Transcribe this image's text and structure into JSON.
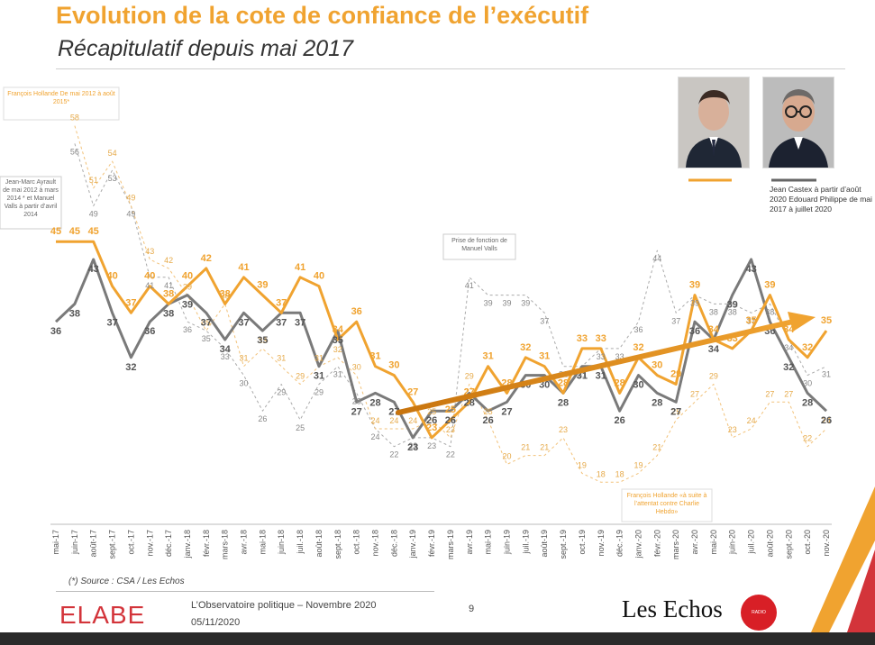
{
  "header": {
    "title": "Evolution de la cote de confiance de l’exécutif",
    "subtitle": "Récapitulatif depuis mai 2017"
  },
  "colors": {
    "orange": "#f0a330",
    "grey": "#7a7a7a",
    "title": "#f0a330",
    "elabe": "#d3343a"
  },
  "images": {
    "photo1": "portrait-man-dark-hair",
    "photo2": "portrait-man-glasses"
  },
  "legend": {
    "castex_label": "Jean  Castex à partir d’août 2020 Edouard Philippe de mai 2017 à juillet 2020"
  },
  "chart_data": {
    "type": "line",
    "categories": [
      "mai-17",
      "juin-17",
      "août-17",
      "sept.-17",
      "oct.-17",
      "nov.-17",
      "déc.-17",
      "janv.-18",
      "févr.-18",
      "mars-18",
      "avr.-18",
      "mai-18",
      "juin-18",
      "juil.-18",
      "août-18",
      "sept.-18",
      "oct.-18",
      "nov.-18",
      "déc.-18",
      "janv.-19",
      "févr.-19",
      "mars-19",
      "avr.-19",
      "mai-19",
      "juin-19",
      "juil.-19",
      "août-19",
      "sept.-19",
      "oct.-19",
      "nov.-19",
      "déc.-19",
      "janv.-20",
      "févr.-20",
      "mars-20",
      "avr.-20",
      "mai-20",
      "juin-20",
      "juil.-20",
      "août-20",
      "sept.-20",
      "oct.-20",
      "nov.-20"
    ],
    "ylim": [
      15,
      62
    ],
    "series": [
      {
        "values": [
          45,
          45,
          45,
          40,
          37,
          40,
          38,
          40,
          42,
          38,
          41,
          39,
          37,
          41,
          40,
          34,
          36,
          31,
          30,
          27,
          23,
          25,
          27,
          31,
          28,
          32,
          31,
          28,
          33,
          33,
          28,
          32,
          30,
          29,
          39,
          34,
          33,
          35,
          39,
          34,
          32,
          35
        ]
      },
      {
        "values": [
          36,
          38,
          43,
          37,
          32,
          36,
          38,
          39,
          37,
          34,
          37,
          35,
          37,
          37,
          31,
          35,
          27,
          28,
          27,
          23,
          26,
          26,
          28,
          26,
          27,
          30,
          30,
          28,
          31,
          31,
          26,
          30,
          28,
          27,
          36,
          34,
          39,
          43,
          36,
          32,
          28,
          26
        ]
      },
      {
        "values": [
          null,
          58,
          51,
          54,
          49,
          43,
          42,
          39,
          35,
          38,
          31,
          33,
          31,
          29,
          31,
          32,
          30,
          24,
          24,
          24,
          25,
          23,
          29,
          25,
          20,
          21,
          21,
          23,
          19,
          18,
          18,
          19,
          21,
          25,
          27,
          29,
          23,
          24,
          27,
          27,
          22,
          24
        ]
      },
      {
        "values": [
          null,
          56,
          49,
          53,
          49,
          41,
          41,
          36,
          35,
          33,
          30,
          26,
          29,
          25,
          29,
          31,
          28,
          24,
          22,
          23,
          23,
          22,
          41,
          39,
          39,
          39,
          37,
          31,
          31,
          33,
          33,
          36,
          44,
          37,
          39,
          38,
          38,
          37,
          38,
          34,
          30,
          31
        ]
      }
    ],
    "data_labels": [
      {
        "series": 0,
        "values": [
          "45",
          "45",
          "45",
          "40",
          "37",
          "40",
          "38",
          "40",
          "42",
          "38",
          "41",
          "39",
          "37",
          "41",
          "40",
          "34",
          "36",
          "31",
          "30",
          "27",
          "23",
          "25",
          "27",
          "31",
          "28",
          "32",
          "31",
          "28",
          "33",
          "33",
          "28",
          "32",
          "30",
          "29",
          "39",
          "34",
          "33",
          "35",
          "39",
          "34",
          "32",
          "35"
        ]
      },
      {
        "series": 1,
        "values": [
          "36",
          "38",
          "43",
          "37",
          "32",
          "36",
          "38",
          "39",
          "37",
          "34",
          "37",
          "35",
          "37",
          "37",
          "31",
          "35",
          "27",
          "28",
          "27",
          "23",
          "26",
          "26",
          "28",
          "26",
          "27",
          "30",
          "30",
          "28",
          "31",
          "31",
          "26",
          "30",
          "28",
          "27",
          "36",
          "34",
          "39",
          "43",
          "36",
          "32",
          "28",
          "26"
        ]
      },
      {
        "series": 2,
        "values": [
          null,
          "58",
          "51",
          "54",
          "49",
          "43",
          "42",
          "39",
          "35",
          "38",
          "31",
          "33",
          "31",
          "29",
          "31",
          "32",
          "30",
          "24",
          "24",
          "24",
          "25",
          "23",
          "29",
          "25",
          "20",
          "21",
          "21",
          "23",
          "19",
          "18",
          "18",
          "19",
          "21",
          "25",
          "27",
          "29",
          "23",
          "24",
          "27",
          "27",
          "22",
          "24"
        ]
      },
      {
        "series": 3,
        "values": [
          null,
          "56",
          "49",
          "53",
          "49",
          "41",
          "41",
          "36",
          "35",
          "33",
          "30",
          "26",
          "29",
          "25",
          "29",
          "31",
          "28",
          "24",
          "22",
          "23",
          "23",
          "22",
          "41",
          "39",
          "39",
          "39",
          "37",
          "31",
          "31",
          "33",
          "33",
          "36",
          "44",
          "37",
          "39",
          "38",
          "38",
          "37",
          "38",
          "34",
          "30",
          "31"
        ]
      }
    ],
    "annotations": {
      "hollande": "François Hollande De mai 2012 à août 2015*",
      "ayrault": "Jean-Marc Ayrault de mai 2012 à mars 2014 * et Manuel Valls à partir d’avril 2014",
      "valls": "Prise de fonction de Manuel Valls",
      "charlie": "François Hollande «à suite à l’attentat contre Charlie Hebdo»"
    }
  },
  "footer": {
    "source": "(*) Source : CSA / Les Echos",
    "elabe": "ELABE",
    "observatoire": "L’Observatoire politique – Novembre 2020",
    "date": "05/11/2020",
    "page": "9",
    "lesechos": "Les Echos",
    "radio": "RADIO CLASSIQUE"
  }
}
